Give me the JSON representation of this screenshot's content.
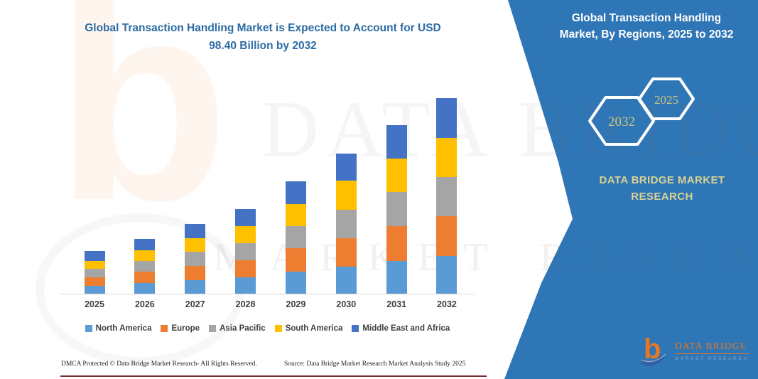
{
  "page": {
    "title_lines": [
      "Global Transaction Handling Market is Expected to Account for USD",
      "98.40 Billion by 2032"
    ]
  },
  "side_panel": {
    "panel_color": "#2F76B6",
    "title_lines": [
      "Global Transaction Handling",
      "Market, By Regions, 2025 to 2032"
    ],
    "hexagons": [
      {
        "label": "2032"
      },
      {
        "label": "2025"
      }
    ],
    "brand_lines": [
      "DATA BRIDGE MARKET",
      "RESEARCH"
    ],
    "accent_text_color": "#D9D294"
  },
  "logo": {
    "monogram": "b",
    "name": "DATA BRIDGE",
    "tagline": "MARKET RESEARCH",
    "orange": "#E87722",
    "blue": "#2F5FA5"
  },
  "watermark": {
    "monogram": "b",
    "text_top": "DATA BRIDGE",
    "text_bottom": "MARKET RESEARCH"
  },
  "footer": {
    "left": "DMCA Protected © Data Bridge Market Research-  All Rights Reserved.",
    "source": "Source: Data Bridge Market Research  Market Analysis Study 2025"
  },
  "chart_data": {
    "type": "bar",
    "stacked": true,
    "title": "Global Transaction Handling Market is Expected to Account for USD 98.40 Billion by 2032",
    "unit": "USD Billion",
    "categories": [
      "2025",
      "2026",
      "2027",
      "2028",
      "2029",
      "2030",
      "2031",
      "2032"
    ],
    "series": [
      {
        "name": "North America",
        "color": "#5B9BD5",
        "values": [
          3.9,
          5.4,
          6.9,
          8.4,
          11.1,
          13.5,
          16.6,
          19.1
        ]
      },
      {
        "name": "Europe",
        "color": "#ED7D31",
        "values": [
          4.4,
          5.6,
          7.1,
          8.6,
          11.9,
          14.3,
          17.4,
          20.0
        ]
      },
      {
        "name": "Asia Pacific",
        "color": "#A5A5A5",
        "values": [
          4.3,
          5.5,
          7.0,
          8.5,
          11.1,
          14.3,
          17.2,
          19.5
        ]
      },
      {
        "name": "South America",
        "color": "#FFC000",
        "values": [
          3.8,
          5.3,
          7.0,
          8.5,
          11.0,
          14.9,
          16.9,
          19.7
        ]
      },
      {
        "name": "Middle East and Africa",
        "color": "#4472C4",
        "values": [
          4.9,
          5.6,
          7.0,
          8.5,
          11.3,
          13.4,
          16.6,
          20.1
        ]
      }
    ],
    "totals": [
      21.3,
      27.4,
      35.0,
      42.5,
      56.4,
      70.4,
      84.7,
      98.4
    ],
    "ylim": [
      0,
      100
    ],
    "y_axis_visible": false,
    "gridlines": false,
    "legend_position": "bottom",
    "axis_line_color": "#D9D9D9"
  }
}
